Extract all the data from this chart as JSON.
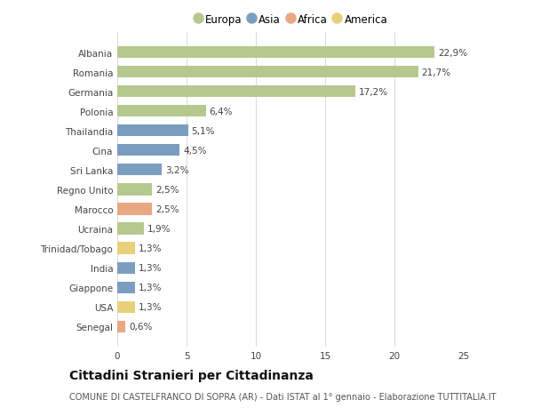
{
  "categories": [
    "Albania",
    "Romania",
    "Germania",
    "Polonia",
    "Thailandia",
    "Cina",
    "Sri Lanka",
    "Regno Unito",
    "Marocco",
    "Ucraina",
    "Trinidad/Tobago",
    "India",
    "Giappone",
    "USA",
    "Senegal"
  ],
  "values": [
    22.9,
    21.7,
    17.2,
    6.4,
    5.1,
    4.5,
    3.2,
    2.5,
    2.5,
    1.9,
    1.3,
    1.3,
    1.3,
    1.3,
    0.6
  ],
  "labels": [
    "22,9%",
    "21,7%",
    "17,2%",
    "6,4%",
    "5,1%",
    "4,5%",
    "3,2%",
    "2,5%",
    "2,5%",
    "1,9%",
    "1,3%",
    "1,3%",
    "1,3%",
    "1,3%",
    "0,6%"
  ],
  "continent": [
    "Europa",
    "Europa",
    "Europa",
    "Europa",
    "Asia",
    "Asia",
    "Asia",
    "Europa",
    "Africa",
    "Europa",
    "America",
    "Asia",
    "Asia",
    "America",
    "Africa"
  ],
  "colors": {
    "Europa": "#b5c98e",
    "Asia": "#7b9dc0",
    "Africa": "#e8a882",
    "America": "#e8d07a"
  },
  "legend_order": [
    "Europa",
    "Asia",
    "Africa",
    "America"
  ],
  "title": "Cittadini Stranieri per Cittadinanza",
  "subtitle": "COMUNE DI CASTELFRANCO DI SOPRA (AR) - Dati ISTAT al 1° gennaio - Elaborazione TUTTITALIA.IT",
  "xlim": [
    0,
    25
  ],
  "xticks": [
    0,
    5,
    10,
    15,
    20,
    25
  ],
  "background_color": "#ffffff",
  "grid_color": "#dddddd",
  "bar_height": 0.6,
  "label_fontsize": 7.5,
  "tick_fontsize": 7.5,
  "legend_fontsize": 8.5,
  "title_fontsize": 10,
  "subtitle_fontsize": 7
}
